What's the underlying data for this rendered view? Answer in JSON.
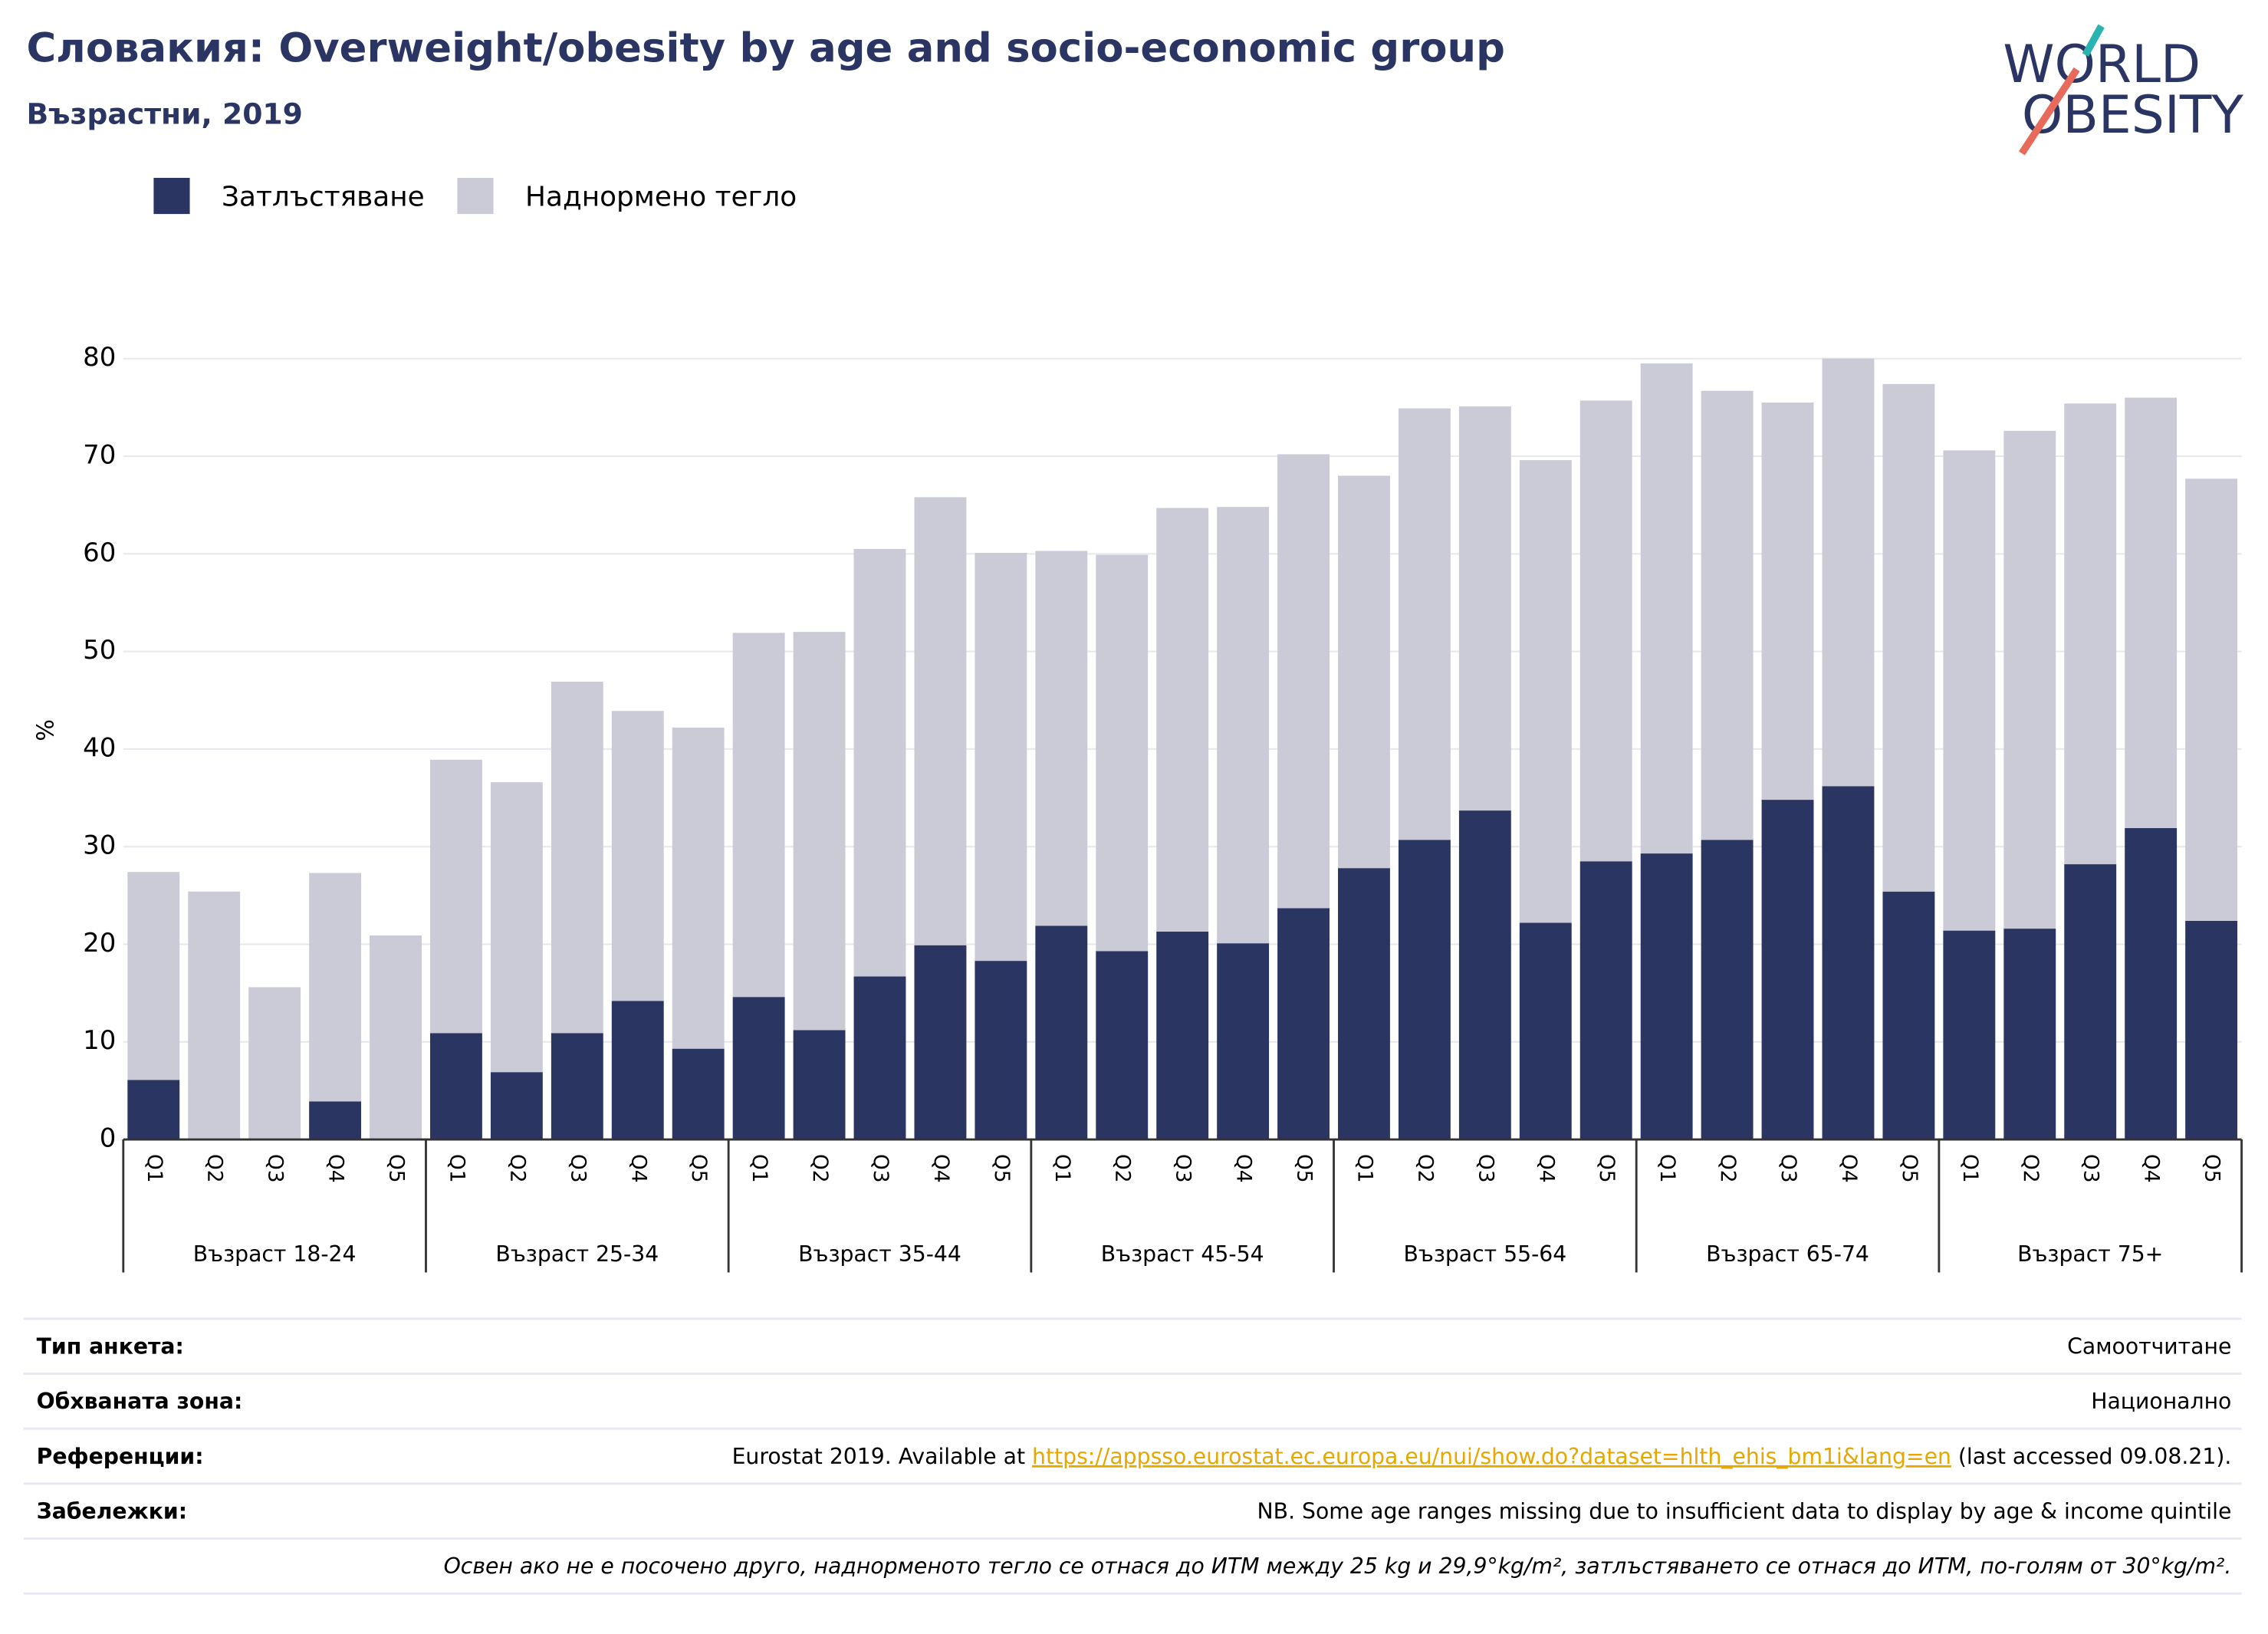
{
  "chart_data": {
    "type": "stacked_bar",
    "title": "Словакия: Overweight/obesity by age and socio-economic group",
    "subtitle": "Възрастни, 2019",
    "logo": [
      "WORLD",
      "OBESITY"
    ],
    "y_label": "%",
    "categories": [
      "Q1",
      "Q2",
      "Q3",
      "Q4",
      "Q5",
      "Q1",
      "Q2",
      "Q3",
      "Q4",
      "Q5",
      "Q1",
      "Q2",
      "Q3",
      "Q4",
      "Q5",
      "Q1",
      "Q2",
      "Q3",
      "Q4",
      "Q5",
      "Q1",
      "Q2",
      "Q3",
      "Q4",
      "Q5",
      "Q1",
      "Q2",
      "Q3",
      "Q4",
      "Q5",
      "Q1",
      "Q2",
      "Q3",
      "Q4",
      "Q5"
    ],
    "groups": [
      "Възраст 18-24",
      "Възраст 25-34",
      "Възраст 35-44",
      "Възраст 45-54",
      "Възраст 55-64",
      "Възраст 65-74",
      "Възраст 75+"
    ],
    "series": [
      {
        "name": "Затлъстяване",
        "color": "#2b3562",
        "values": [
          6.1,
          null,
          null,
          3.9,
          null,
          10.9,
          6.9,
          10.9,
          14.2,
          9.3,
          14.6,
          11.2,
          16.7,
          19.9,
          18.3,
          21.9,
          19.3,
          21.3,
          20.1,
          23.7,
          27.8,
          30.7,
          33.7,
          22.2,
          28.5,
          29.3,
          30.7,
          34.8,
          36.2,
          25.4,
          21.4,
          21.6,
          28.2,
          31.9,
          22.4
        ]
      },
      {
        "name": "Наднормено тегло",
        "color": "#cacbd7",
        "values": [
          21.3,
          25.4,
          15.6,
          23.4,
          20.9,
          28.0,
          29.7,
          36.0,
          29.7,
          32.9,
          37.3,
          40.8,
          43.8,
          45.9,
          41.8,
          38.4,
          40.6,
          43.4,
          44.7,
          46.5,
          40.2,
          44.2,
          41.4,
          47.4,
          47.2,
          50.2,
          46.0,
          40.7,
          43.8,
          52.0,
          49.2,
          51.0,
          47.2,
          44.1,
          45.3
        ]
      }
    ],
    "ylim": [
      0,
      80
    ],
    "yticks": [
      0,
      10,
      20,
      30,
      40,
      50,
      60,
      70,
      80
    ],
    "grid": true,
    "legend": "top-left"
  },
  "footer": {
    "rows": [
      {
        "label": "Тип анкета:",
        "value": [
          "Самоотчитане"
        ]
      },
      {
        "label": "Обхваната зона:",
        "value": [
          "Национално"
        ]
      },
      {
        "label": "Референции:",
        "value": [
          "Eurostat 2019. Available at ",
          "https://appsso.eurostat.ec.europa.eu/nui/show.do?dataset=hlth_ehis_bm1i&lang=en",
          " (last accessed 09.08.21)."
        ]
      },
      {
        "label": "Забележки:",
        "value": [
          "NB. Some age ranges missing due to insufficient data to display by age & income quintile"
        ]
      }
    ],
    "note": "Освен ако не е посочено друго, наднорменото тегло се отнася до ИТМ между 25 kg и 29,9°kg/m², затлъстяването се отнася до ИТМ, по-голям от 30°kg/m²."
  }
}
